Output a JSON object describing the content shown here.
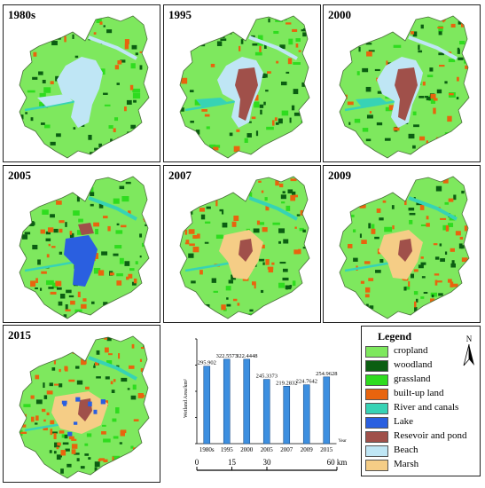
{
  "panels": [
    {
      "year": "1980s",
      "stage": 0
    },
    {
      "year": "1995",
      "stage": 1
    },
    {
      "year": "2000",
      "stage": 2
    },
    {
      "year": "2005",
      "stage": 3
    },
    {
      "year": "2007",
      "stage": 4
    },
    {
      "year": "2009",
      "stage": 5
    },
    {
      "year": "2015",
      "stage": 6
    }
  ],
  "chart_data": {
    "type": "bar",
    "categories": [
      "1980s",
      "1995",
      "2000",
      "2005",
      "2007",
      "2009",
      "2015"
    ],
    "values": [
      295.902,
      322.5573,
      322.4448,
      245.3373,
      219.2832,
      224.7642,
      254.9628
    ],
    "value_labels": [
      "295.902",
      "322.5573",
      "322.4448",
      "245.3373",
      "219.2832",
      "224.7642",
      "254.9628"
    ],
    "ylabel": "Wetland Area/km²",
    "xlabel": "Year",
    "ylim": [
      0,
      400
    ],
    "yticks": [
      0,
      100,
      200,
      300,
      400
    ],
    "bar_color": "#3d8fe0",
    "bar_edge": "#1b4f8a"
  },
  "scale_bar": {
    "ticks": [
      "0",
      "15",
      "30",
      "60 km"
    ],
    "values": [
      0,
      15,
      30,
      60
    ]
  },
  "legend": {
    "title": "Legend",
    "items": [
      {
        "label": "cropland",
        "color": "#7ee85e"
      },
      {
        "label": "woodland",
        "color": "#0b5e12"
      },
      {
        "label": "grassland",
        "color": "#2fdc1f"
      },
      {
        "label": "built-up land",
        "color": "#e8640e"
      },
      {
        "label": "River and canals",
        "color": "#37d3b5"
      },
      {
        "label": "Lake",
        "color": "#2a5fe0"
      },
      {
        "label": "Resevoir and pond",
        "color": "#a0504a"
      },
      {
        "label": "Beach",
        "color": "#bfe6f5"
      },
      {
        "label": "Marsh",
        "color": "#f5cd86"
      }
    ]
  },
  "north_arrow": {
    "label": "N"
  }
}
